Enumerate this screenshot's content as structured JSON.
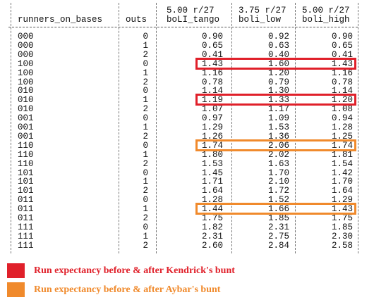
{
  "table": {
    "headers": {
      "runners": "runners_on_bases",
      "outs": "outs",
      "tango_rate": "5.00 r/27",
      "tango": "boLI_tango",
      "low_rate": "3.75 r/27",
      "low": "boli_low",
      "high_rate": "5.00 r/27",
      "high": "boli_high"
    },
    "rows": [
      {
        "runners": "000",
        "outs": "0",
        "tango": "0.90",
        "low": "0.92",
        "high": "0.90"
      },
      {
        "runners": "000",
        "outs": "1",
        "tango": "0.65",
        "low": "0.63",
        "high": "0.65"
      },
      {
        "runners": "000",
        "outs": "2",
        "tango": "0.41",
        "low": "0.40",
        "high": "0.41"
      },
      {
        "runners": "100",
        "outs": "0",
        "tango": "1.43",
        "low": "1.60",
        "high": "1.43"
      },
      {
        "runners": "100",
        "outs": "1",
        "tango": "1.16",
        "low": "1.20",
        "high": "1.16"
      },
      {
        "runners": "100",
        "outs": "2",
        "tango": "0.78",
        "low": "0.79",
        "high": "0.78"
      },
      {
        "runners": "010",
        "outs": "0",
        "tango": "1.14",
        "low": "1.30",
        "high": "1.14"
      },
      {
        "runners": "010",
        "outs": "1",
        "tango": "1.19",
        "low": "1.33",
        "high": "1.20"
      },
      {
        "runners": "010",
        "outs": "2",
        "tango": "1.07",
        "low": "1.17",
        "high": "1.08"
      },
      {
        "runners": "001",
        "outs": "0",
        "tango": "0.97",
        "low": "1.09",
        "high": "0.94"
      },
      {
        "runners": "001",
        "outs": "1",
        "tango": "1.29",
        "low": "1.53",
        "high": "1.28"
      },
      {
        "runners": "001",
        "outs": "2",
        "tango": "1.26",
        "low": "1.36",
        "high": "1.25"
      },
      {
        "runners": "110",
        "outs": "0",
        "tango": "1.74",
        "low": "2.06",
        "high": "1.74"
      },
      {
        "runners": "110",
        "outs": "1",
        "tango": "1.80",
        "low": "2.02",
        "high": "1.81"
      },
      {
        "runners": "110",
        "outs": "2",
        "tango": "1.53",
        "low": "1.63",
        "high": "1.54"
      },
      {
        "runners": "101",
        "outs": "0",
        "tango": "1.45",
        "low": "1.70",
        "high": "1.42"
      },
      {
        "runners": "101",
        "outs": "1",
        "tango": "1.71",
        "low": "2.10",
        "high": "1.70"
      },
      {
        "runners": "101",
        "outs": "2",
        "tango": "1.64",
        "low": "1.72",
        "high": "1.64"
      },
      {
        "runners": "011",
        "outs": "0",
        "tango": "1.28",
        "low": "1.52",
        "high": "1.29"
      },
      {
        "runners": "011",
        "outs": "1",
        "tango": "1.44",
        "low": "1.66",
        "high": "1.43"
      },
      {
        "runners": "011",
        "outs": "2",
        "tango": "1.75",
        "low": "1.85",
        "high": "1.75"
      },
      {
        "runners": "111",
        "outs": "0",
        "tango": "1.82",
        "low": "2.31",
        "high": "1.85"
      },
      {
        "runners": "111",
        "outs": "1",
        "tango": "2.31",
        "low": "2.75",
        "high": "2.30"
      },
      {
        "runners": "111",
        "outs": "2",
        "tango": "2.60",
        "low": "2.84",
        "high": "2.58"
      }
    ]
  },
  "highlights": {
    "kendrick_rows": [
      3,
      7
    ],
    "aybar_rows": [
      12,
      19
    ]
  },
  "colors": {
    "kendrick": "#e0202a",
    "aybar": "#f08a2c",
    "kendrick_text": "#e0202a",
    "aybar_text": "#f08a2c"
  },
  "legend": {
    "kendrick_label": "Run expectancy before & after Kendrick's bunt",
    "aybar_label": "Run expectancy before & after Aybar's bunt"
  }
}
